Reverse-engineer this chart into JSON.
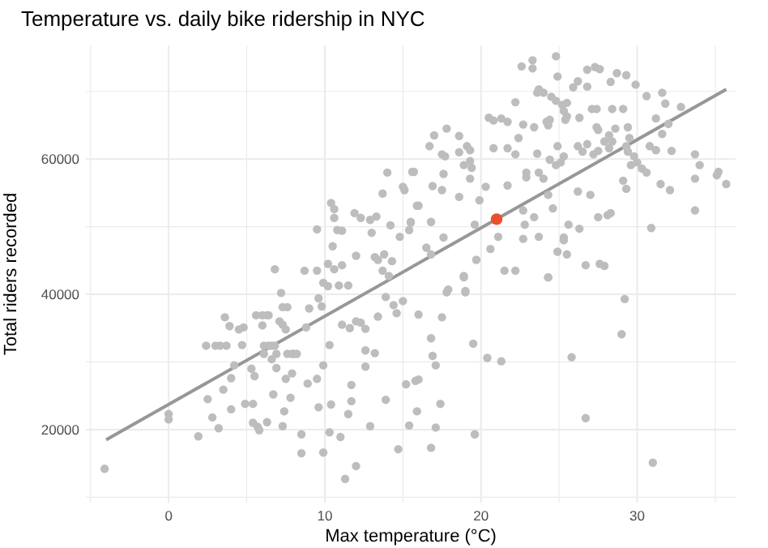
{
  "chart_data": {
    "type": "scatter",
    "title": "Temperature vs. daily bike ridership in NYC",
    "xlabel": "Max temperature (°C)",
    "ylabel": "Total riders recorded",
    "xlim": [
      -5.3,
      36.3
    ],
    "ylim": [
      9200,
      76800
    ],
    "xticks": [
      {
        "value": -5,
        "label": null
      },
      0,
      {
        "value": 5,
        "label": null
      },
      10,
      {
        "value": 15,
        "label": null
      },
      20,
      {
        "value": 25,
        "label": null
      },
      30,
      {
        "value": 35,
        "label": null
      }
    ],
    "yticks": [
      {
        "value": 10000,
        "label": null
      },
      20000,
      {
        "value": 30000,
        "label": null
      },
      40000,
      {
        "value": 50000,
        "label": null
      },
      60000,
      {
        "value": 70000,
        "label": null
      }
    ],
    "grid": true,
    "marker": "circle",
    "series": [
      {
        "color": "#bdbdbd",
        "x": [
          -4.1,
          0,
          0,
          1.9,
          2.4,
          3.0,
          3.3,
          3.7,
          2.5,
          2.8,
          3.2,
          3.5,
          3.6,
          3.9,
          4.0,
          4.2,
          4.0,
          4.5,
          4.8,
          4.7,
          4.9,
          5.4,
          5.3,
          5.5,
          5.4,
          5.7,
          5.8,
          6.3,
          5.6,
          6.0,
          6.3,
          6.4,
          6.0,
          6.1,
          6.4,
          6.6,
          6.8,
          6.1,
          6.9,
          6.6,
          6.7,
          6.9,
          7.1,
          7.3,
          7.5,
          7.2,
          7.3,
          7.6,
          7.3,
          7.4,
          7.5,
          7.6,
          7.9,
          8.0,
          8.2,
          7.8,
          7.9,
          8.5,
          8.5,
          9.0,
          9.6,
          9.8,
          8.9,
          8.8,
          9.5,
          9.6,
          9.9,
          9.9,
          10.4,
          10.3,
          10.3,
          11.0,
          11.3,
          11.5,
          11.7,
          11.7,
          12.0,
          11.1,
          11.6,
          12.0,
          12.3,
          12.6,
          12.6,
          13.2,
          12.6,
          12.9,
          13.9,
          13.4,
          13.9,
          14.4,
          14.6,
          15.0,
          14.7,
          15.2,
          15.4,
          15.8,
          16.0,
          15.9,
          16.0,
          16.8,
          16.9,
          17.1,
          17.1,
          16.8,
          17.4,
          17.5,
          17.8,
          18.9,
          19.0,
          19.5,
          19.6,
          20.4,
          21.3,
          24.3,
          25.8,
          26.7,
          29.0,
          29.2,
          31.0,
          24.8,
          23.3,
          22.6,
          23.3,
          26.8,
          27.3,
          27.6,
          24.9,
          26.2,
          25.9,
          26.8,
          28.7,
          29.3,
          28.3,
          29.9,
          23.7,
          23.6,
          24.0,
          24.5,
          24.8,
          25.2,
          25.5,
          22.2,
          30.6,
          31.6,
          31.8,
          32.8,
          27.1,
          27.4,
          28.4,
          29.1,
          20.5,
          20.8,
          21.3,
          21.7,
          22.7,
          23.4,
          24.2,
          24.4,
          24.3,
          25.3,
          25.5,
          25.4,
          26.3,
          27.4,
          27.5,
          28.2,
          28.6,
          29.4,
          29.5,
          31.2,
          31.6,
          32.0,
          17.0,
          17.8,
          16.7,
          18.6,
          19.1,
          19.3,
          17.5,
          17.7,
          18.6,
          18.9,
          19.3,
          19.4,
          20.8,
          21.7,
          22.4,
          22.2,
          22.9,
          22.9,
          23.6,
          23.7,
          24.0,
          24.4,
          24.8,
          24.9,
          25.1,
          25.3,
          26.2,
          26.5,
          26.8,
          27.2,
          27.5,
          27.9,
          28.2,
          28.4,
          29.3,
          29.4,
          29.8,
          30.0,
          30.3,
          30.6,
          29.6,
          30.8,
          31.2,
          32.2,
          33.7,
          34.0,
          35.1,
          35.2,
          35.7,
          33.7,
          31.5,
          32.1,
          33.7,
          30.9,
          15.6,
          16.9,
          17.6,
          17.5,
          18.6,
          19.3,
          19.9,
          20.3,
          21.7,
          16.0,
          15.5,
          15.4,
          16.8,
          17.6,
          16.5,
          16.8,
          19.6,
          21.1,
          19.7,
          20.6,
          22.7,
          22.8,
          23.4,
          22.7,
          23.7,
          24.3,
          24.6,
          25.3,
          25.3,
          24.9,
          25.5,
          25.6,
          26.3,
          26.2,
          27.0,
          27.5,
          28.1,
          28.3,
          26.7,
          27.6,
          27.9,
          29.3,
          29.1,
          21.5,
          22.2,
          24.3,
          18.9,
          17.9,
          19.0,
          14.0,
          15.7,
          13.7,
          15.0,
          15.1,
          10.4,
          10.6,
          10.6,
          10.8,
          11.1,
          11.9,
          12.3,
          12.9,
          13.3,
          9.5,
          10.5,
          12.0,
          13.0,
          14.2,
          14.8,
          15.5,
          15.9,
          13.2,
          13.4,
          13.8,
          14.3,
          13.7,
          14.1,
          6.8,
          8.7,
          9.5,
          10.2,
          10.6,
          11.1,
          11.5,
          10.9,
          9.9,
          10.2
        ],
        "values": [
          14200,
          22300,
          21500,
          19000,
          32400,
          32400,
          32400,
          32400,
          24500,
          21800,
          20200,
          25900,
          36600,
          35300,
          23000,
          29500,
          27600,
          34800,
          35100,
          32500,
          23800,
          23800,
          29000,
          27900,
          21000,
          20400,
          19900,
          21100,
          36900,
          36900,
          36900,
          36900,
          35400,
          32400,
          32400,
          32400,
          32400,
          31200,
          31200,
          30400,
          25200,
          29100,
          36000,
          35500,
          34800,
          40200,
          38100,
          38100,
          20500,
          22700,
          27500,
          31200,
          31200,
          31200,
          31200,
          24700,
          28300,
          19300,
          16500,
          37900,
          39400,
          38200,
          26800,
          35100,
          27500,
          23300,
          16600,
          29500,
          23700,
          32500,
          19600,
          18900,
          12700,
          22300,
          24200,
          26600,
          14600,
          35500,
          35000,
          36000,
          35800,
          34900,
          31700,
          31300,
          29300,
          20500,
          24400,
          36700,
          39600,
          38400,
          37200,
          39000,
          17100,
          26700,
          20600,
          27200,
          27400,
          22700,
          37000,
          33500,
          30900,
          29500,
          20300,
          17300,
          23800,
          36600,
          40300,
          42500,
          40300,
          32700,
          19300,
          30600,
          30100,
          42500,
          30700,
          21700,
          34100,
          39300,
          15100,
          75200,
          74600,
          73700,
          73400,
          73200,
          73600,
          73300,
          72200,
          71500,
          70600,
          70700,
          72700,
          72400,
          71400,
          71000,
          70300,
          69800,
          69800,
          69200,
          68600,
          68000,
          68300,
          68400,
          69300,
          69800,
          68200,
          67700,
          67400,
          67400,
          67400,
          67400,
          66100,
          65700,
          66000,
          65500,
          65100,
          64700,
          65500,
          65800,
          65000,
          67100,
          66300,
          65800,
          66100,
          64700,
          64300,
          63500,
          64500,
          64700,
          63100,
          66000,
          63700,
          65200,
          63500,
          64500,
          61900,
          63400,
          61900,
          61300,
          60700,
          60400,
          61000,
          59100,
          59700,
          58700,
          61600,
          61600,
          63100,
          60700,
          58000,
          57300,
          60800,
          58000,
          57100,
          59900,
          59100,
          61900,
          59500,
          60400,
          61900,
          61100,
          62200,
          60700,
          61200,
          62600,
          61600,
          62600,
          61900,
          61100,
          60400,
          59500,
          58600,
          58000,
          59100,
          61900,
          61300,
          61200,
          60700,
          59100,
          57600,
          58100,
          56300,
          57100,
          56300,
          55400,
          52400,
          49800,
          58100,
          56000,
          57800,
          55400,
          54400,
          57100,
          53900,
          55900,
          56100,
          53100,
          50700,
          49500,
          50700,
          48400,
          46900,
          45900,
          50300,
          48500,
          45100,
          46700,
          52400,
          50300,
          51400,
          48200,
          48500,
          54700,
          52700,
          48400,
          48000,
          46300,
          45900,
          50300,
          49700,
          55200,
          54700,
          51400,
          51700,
          52000,
          44300,
          44500,
          44200,
          55600,
          56800,
          43500,
          43500,
          42500,
          42700,
          40700,
          40500,
          58000,
          58100,
          54900,
          55900,
          55400,
          53500,
          52600,
          51300,
          49500,
          49400,
          52000,
          51300,
          51000,
          51500,
          49600,
          47100,
          45700,
          49100,
          50200,
          48500,
          50600,
          53100,
          45500,
          45100,
          45900,
          44900,
          43500,
          42700,
          43700,
          43500,
          43500,
          44500,
          43700,
          44300,
          41300,
          41300,
          41700,
          41200
        ]
      },
      {
        "type": "line",
        "color": "#979797",
        "x": [
          -4,
          35.7
        ],
        "values": [
          18500,
          70300
        ],
        "marker": "none",
        "line_style": "solid"
      },
      {
        "type": "scatter",
        "color": "#e8512a",
        "x": [
          21.0
        ],
        "values": [
          51100
        ]
      }
    ]
  }
}
